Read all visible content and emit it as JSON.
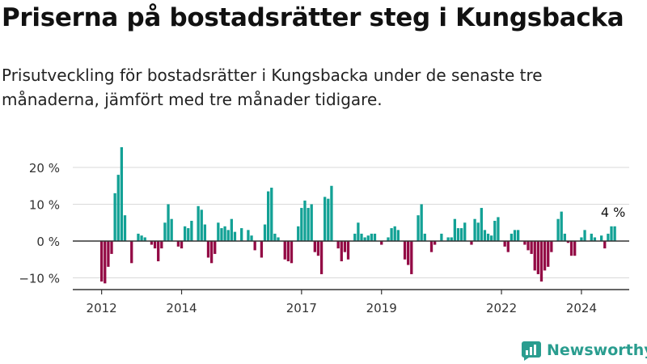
{
  "title": "Priserna på bostadsrätter steg i Kungsbacka",
  "subtitle": "Prisutveckling för bostadsrätter i Kungsbacka under de senaste tre månaderna, jämfört med tre månader tidigare.",
  "brand": {
    "name": "Newsworthy",
    "icon": "bar-chart-logo-icon"
  },
  "colors": {
    "positive": "#12a195",
    "negative": "#930a45",
    "grid": "#d9d9d9",
    "axis": "#333333",
    "brand": "#2a9d8f"
  },
  "chart_data": {
    "type": "bar",
    "start": "2012-01",
    "frequency": "monthly",
    "value_unit": "%",
    "ylim": [
      -12,
      26
    ],
    "y_ticks": [
      {
        "value": 20,
        "label": "20 %"
      },
      {
        "value": 10,
        "label": "10 %"
      },
      {
        "value": 0,
        "label": "0 %"
      },
      {
        "value": -10,
        "label": "−10 %"
      }
    ],
    "x_ticks": [
      {
        "date": "2012-01",
        "label": "2012"
      },
      {
        "date": "2014-01",
        "label": "2014"
      },
      {
        "date": "2017-01",
        "label": "2017"
      },
      {
        "date": "2019-01",
        "label": "2019"
      },
      {
        "date": "2022-01",
        "label": "2022"
      },
      {
        "date": "2024-01",
        "label": "2024"
      }
    ],
    "end_label": "4 %",
    "grid": true,
    "legend": "none",
    "values": [
      -11,
      -11.5,
      -7,
      -3.5,
      13,
      18,
      25.5,
      7,
      0,
      -6,
      0,
      2,
      1.5,
      1,
      0,
      -1,
      -2,
      -5.5,
      -2,
      5,
      10,
      6,
      0,
      -1.5,
      -2,
      4,
      3.5,
      5.5,
      0,
      9.5,
      8.5,
      4.5,
      -4.5,
      -6,
      -3.5,
      5,
      3.5,
      4,
      3,
      6,
      2.5,
      0,
      3.5,
      0,
      3,
      1.5,
      -2.5,
      0,
      -4.5,
      4.5,
      13.5,
      14.5,
      2,
      1,
      0,
      -5,
      -5.5,
      -6,
      0,
      4,
      9,
      11,
      9,
      10,
      -3,
      -4,
      -9,
      12,
      11.5,
      15,
      0,
      -2,
      -5.5,
      -3,
      -5,
      0,
      2,
      5,
      2,
      1,
      1.5,
      2,
      2,
      0,
      -1,
      0,
      1,
      3.5,
      4,
      3,
      0,
      -5,
      -6.5,
      -9,
      0,
      7,
      10,
      2,
      0,
      -3,
      -1,
      0,
      2,
      0,
      1,
      1,
      6,
      3.5,
      3.5,
      5,
      0,
      -1,
      6,
      5,
      9,
      3,
      2,
      1.5,
      5.5,
      6.5,
      0,
      -1.5,
      -3,
      2,
      3,
      3,
      0,
      -1,
      -2.5,
      -3.5,
      -8,
      -9,
      -11,
      -8,
      -7,
      -3,
      0,
      6,
      8,
      2,
      -0.5,
      -4,
      -4,
      0,
      1,
      3,
      0,
      2,
      1,
      0,
      1.5,
      -2,
      2,
      4,
      4
    ]
  }
}
